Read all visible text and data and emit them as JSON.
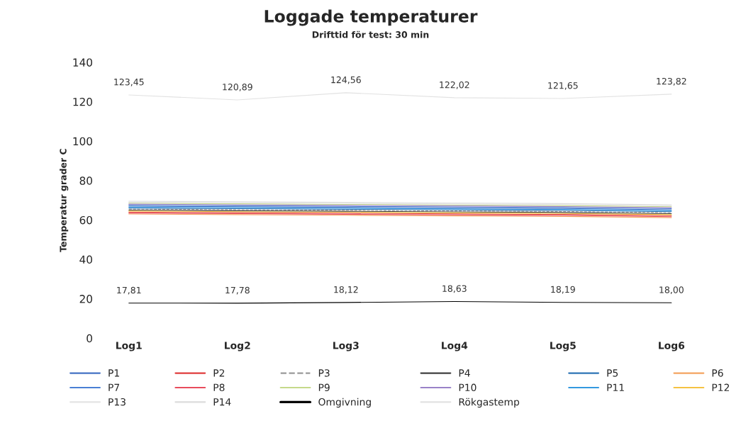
{
  "chart_data": {
    "type": "line",
    "title": "Loggade temperaturer",
    "subtitle": "Drifttid för test: 30 min",
    "ylabel": "Temperatur grader C",
    "categories": [
      "Log1",
      "Log2",
      "Log3",
      "Log4",
      "Log5",
      "Log6"
    ],
    "ylim": [
      0,
      140
    ],
    "yticks": [
      0,
      20,
      40,
      60,
      80,
      100,
      120,
      140
    ],
    "grid": false,
    "legend": "bottom",
    "marker": "none",
    "series": [
      {
        "name": "P1",
        "color": "#4472c4",
        "values": [
          67.0,
          66.7,
          66.4,
          66.1,
          65.8,
          65.2
        ]
      },
      {
        "name": "P2",
        "color": "#e03c3c",
        "values": [
          64.0,
          63.7,
          63.4,
          63.1,
          62.8,
          62.2
        ]
      },
      {
        "name": "P3",
        "color": "#9a9a9a",
        "line_style": "dashed",
        "values": [
          65.5,
          65.2,
          64.9,
          64.6,
          64.3,
          63.7
        ]
      },
      {
        "name": "P4",
        "color": "#404040",
        "values": [
          65.0,
          64.7,
          64.4,
          64.1,
          63.8,
          63.2
        ]
      },
      {
        "name": "P5",
        "color": "#2e75b6",
        "values": [
          66.0,
          65.7,
          65.4,
          65.1,
          64.8,
          64.2
        ]
      },
      {
        "name": "P6",
        "color": "#f4a460",
        "values": [
          63.0,
          62.7,
          62.4,
          62.1,
          61.8,
          61.2
        ]
      },
      {
        "name": "P7",
        "color": "#4a7fd4",
        "values": [
          67.5,
          67.2,
          66.9,
          66.6,
          66.3,
          65.7
        ]
      },
      {
        "name": "P8",
        "color": "#e84c5c",
        "values": [
          63.5,
          63.2,
          62.9,
          62.6,
          62.3,
          61.7
        ]
      },
      {
        "name": "P9",
        "color": "#c5d98a",
        "values": [
          68.5,
          68.2,
          67.9,
          67.6,
          67.3,
          66.7
        ]
      },
      {
        "name": "P10",
        "color": "#9a82c8",
        "values": [
          68.0,
          67.7,
          67.4,
          67.1,
          66.8,
          66.2
        ]
      },
      {
        "name": "P11",
        "color": "#3399e0",
        "values": [
          66.5,
          66.2,
          65.9,
          65.6,
          65.3,
          64.7
        ]
      },
      {
        "name": "P12",
        "color": "#f5c242",
        "values": [
          64.5,
          64.2,
          63.9,
          63.6,
          63.3,
          62.7
        ]
      },
      {
        "name": "P13",
        "color": "#e4e4e4",
        "values": [
          69.0,
          68.7,
          68.4,
          68.1,
          67.8,
          67.2
        ]
      },
      {
        "name": "P14",
        "color": "#dcdcdc",
        "values": [
          69.5,
          69.2,
          68.9,
          68.6,
          68.3,
          67.7
        ]
      },
      {
        "name": "Omgivning",
        "color": "#000000",
        "values": [
          17.81,
          17.78,
          18.12,
          18.63,
          18.19,
          18.0
        ],
        "value_labels": [
          "17,81",
          "17,78",
          "18,12",
          "18,63",
          "18,19",
          "18,00"
        ]
      },
      {
        "name": "Rökgastemp",
        "color": "#e2e2e2",
        "values": [
          123.45,
          120.89,
          124.56,
          122.02,
          121.65,
          123.82
        ],
        "value_labels": [
          "123,45",
          "120,89",
          "124,56",
          "122,02",
          "121,65",
          "123,82"
        ]
      }
    ]
  }
}
